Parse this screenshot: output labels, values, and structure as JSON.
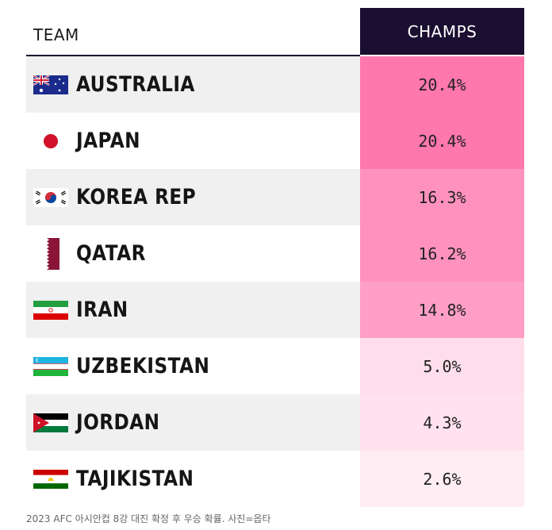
{
  "table": {
    "col_team": "TEAM",
    "col_champs": "CHAMPS",
    "rows": [
      {
        "team": "AUSTRALIA",
        "champs": "20.4%",
        "flag_icon": "australia-flag-icon",
        "cell_color": "#ff78ad"
      },
      {
        "team": "JAPAN",
        "champs": "20.4%",
        "flag_icon": "japan-flag-icon",
        "cell_color": "#ff78ad"
      },
      {
        "team": "KOREA REP",
        "champs": "16.3%",
        "flag_icon": "korea-flag-icon",
        "cell_color": "#ff92bd"
      },
      {
        "team": "QATAR",
        "champs": "16.2%",
        "flag_icon": "qatar-flag-icon",
        "cell_color": "#ff92bd"
      },
      {
        "team": "IRAN",
        "champs": "14.8%",
        "flag_icon": "iran-flag-icon",
        "cell_color": "#ff9fc5"
      },
      {
        "team": "UZBEKISTAN",
        "champs": "5.0%",
        "flag_icon": "uzbekistan-flag-icon",
        "cell_color": "#ffdeeb"
      },
      {
        "team": "JORDAN",
        "champs": "4.3%",
        "flag_icon": "jordan-flag-icon",
        "cell_color": "#ffe2ee"
      },
      {
        "team": "TAJIKISTAN",
        "champs": "2.6%",
        "flag_icon": "tajikistan-flag-icon",
        "cell_color": "#ffedf4"
      }
    ]
  },
  "caption": "2023 AFC 아시안컵 8강 대진 확정 후 우승 확률. 사진=옵타"
}
